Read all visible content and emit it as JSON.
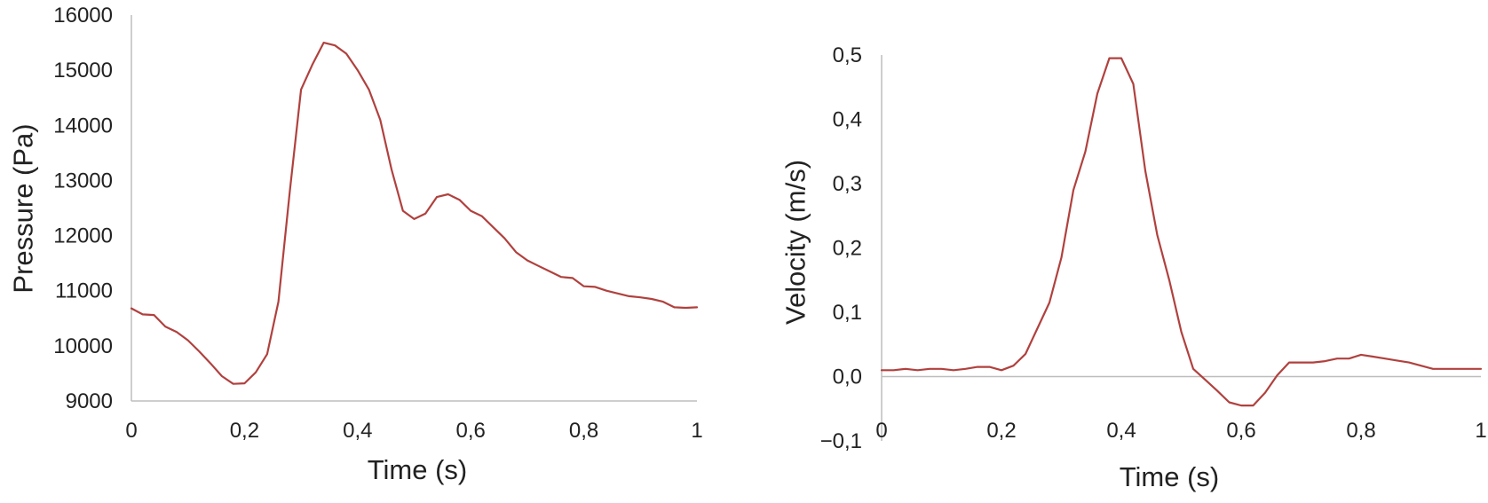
{
  "colors": {
    "series": "#b0413e",
    "axis": "#bdbdbd"
  },
  "chart_data": [
    {
      "type": "line",
      "title": "",
      "xlabel": "Time (s)",
      "ylabel": "Pressure (Pa)",
      "xlim": [
        0,
        1
      ],
      "ylim": [
        9000,
        16000
      ],
      "x_ticks": [
        "0",
        "0,2",
        "0,4",
        "0,6",
        "0,8",
        "1"
      ],
      "y_ticks": [
        "9000",
        "10000",
        "11000",
        "12000",
        "13000",
        "14000",
        "15000",
        "16000"
      ],
      "grid": false,
      "series": [
        {
          "x": [
            0,
            0.02,
            0.04,
            0.06,
            0.08,
            0.1,
            0.12,
            0.14,
            0.16,
            0.18,
            0.2,
            0.22,
            0.24,
            0.26,
            0.28,
            0.3,
            0.32,
            0.34,
            0.36,
            0.38,
            0.4,
            0.42,
            0.44,
            0.46,
            0.48,
            0.5,
            0.52,
            0.54,
            0.56,
            0.58,
            0.6,
            0.62,
            0.64,
            0.66,
            0.68,
            0.7,
            0.72,
            0.74,
            0.76,
            0.78,
            0.8,
            0.82,
            0.84,
            0.86,
            0.88,
            0.9,
            0.92,
            0.94,
            0.96,
            0.98,
            1.0
          ],
          "y": [
            10680,
            10570,
            10560,
            10350,
            10250,
            10100,
            9900,
            9680,
            9450,
            9310,
            9320,
            9520,
            9850,
            10800,
            12800,
            14650,
            15100,
            15500,
            15450,
            15300,
            15000,
            14650,
            14100,
            13200,
            12450,
            12300,
            12400,
            12700,
            12750,
            12650,
            12450,
            12350,
            12150,
            11950,
            11700,
            11550,
            11450,
            11350,
            11250,
            11230,
            11080,
            11070,
            11000,
            10950,
            10900,
            10880,
            10850,
            10800,
            10700,
            10690,
            10700
          ]
        }
      ]
    },
    {
      "type": "line",
      "title": "",
      "xlabel": "Time (s)",
      "ylabel": "Velocity (m/s)",
      "xlim": [
        0,
        1
      ],
      "ylim": [
        -0.1,
        0.5
      ],
      "x_ticks": [
        "0",
        "0,2",
        "0,4",
        "0,6",
        "0,8",
        "1"
      ],
      "y_ticks": [
        "−0,1",
        "0,0",
        "0,1",
        "0,2",
        "0,3",
        "0,4",
        "0,5"
      ],
      "grid": false,
      "series": [
        {
          "x": [
            0,
            0.02,
            0.04,
            0.06,
            0.08,
            0.1,
            0.12,
            0.14,
            0.16,
            0.18,
            0.2,
            0.22,
            0.24,
            0.26,
            0.28,
            0.3,
            0.32,
            0.34,
            0.36,
            0.38,
            0.4,
            0.42,
            0.44,
            0.46,
            0.48,
            0.5,
            0.52,
            0.54,
            0.56,
            0.58,
            0.6,
            0.62,
            0.64,
            0.66,
            0.68,
            0.7,
            0.72,
            0.74,
            0.76,
            0.78,
            0.8,
            0.82,
            0.84,
            0.86,
            0.88,
            0.9,
            0.92,
            0.94,
            0.96,
            0.98,
            1.0
          ],
          "y": [
            0.01,
            0.01,
            0.012,
            0.01,
            0.012,
            0.012,
            0.01,
            0.012,
            0.015,
            0.015,
            0.01,
            0.017,
            0.035,
            0.075,
            0.115,
            0.185,
            0.29,
            0.35,
            0.44,
            0.495,
            0.495,
            0.455,
            0.32,
            0.22,
            0.15,
            0.07,
            0.012,
            -0.005,
            -0.022,
            -0.04,
            -0.045,
            -0.045,
            -0.025,
            0.002,
            0.022,
            0.022,
            0.022,
            0.024,
            0.028,
            0.028,
            0.034,
            0.031,
            0.028,
            0.025,
            0.022,
            0.017,
            0.012,
            0.012,
            0.012,
            0.012,
            0.012
          ]
        }
      ]
    }
  ]
}
